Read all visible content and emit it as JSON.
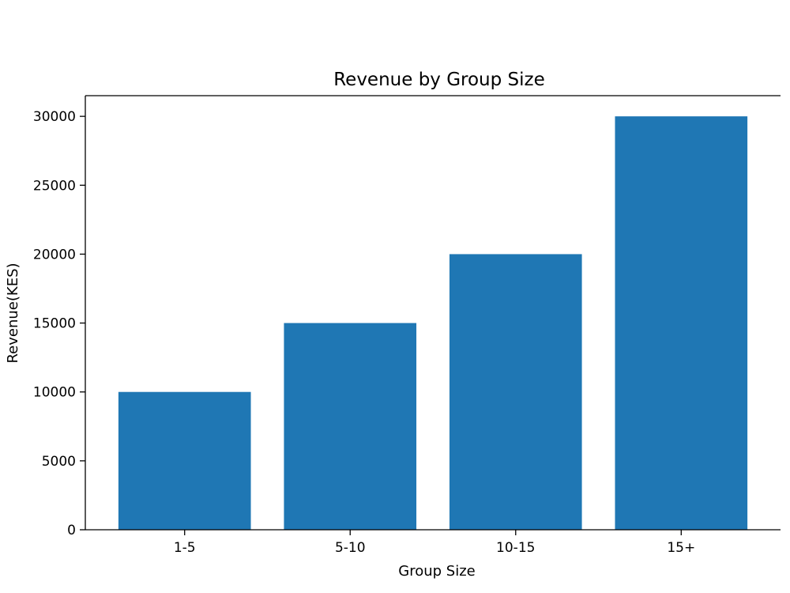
{
  "chart_data": {
    "type": "bar",
    "title": "Revenue by Group Size",
    "xlabel": "Group Size",
    "ylabel": "Revenue(KES)",
    "categories": [
      "1-5",
      "5-10",
      "10-15",
      "15+"
    ],
    "values": [
      10000,
      15000,
      20000,
      30000
    ],
    "ylim": [
      0,
      31500
    ],
    "yticks": [
      0,
      5000,
      10000,
      15000,
      20000,
      25000,
      30000
    ],
    "bar_color": "#1f77b4",
    "grid": false,
    "legend": "none"
  }
}
